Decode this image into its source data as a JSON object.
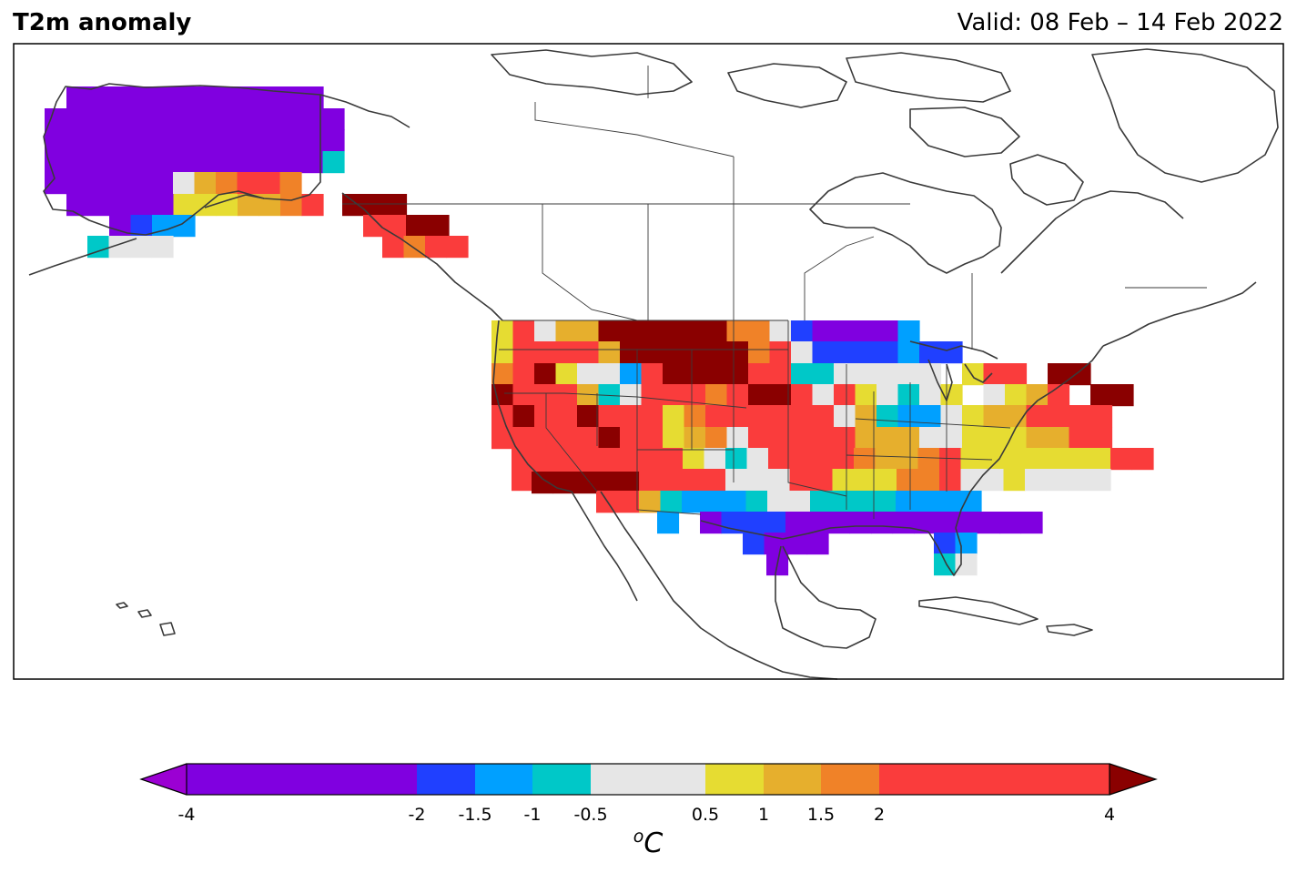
{
  "header": {
    "title": "T2m anomaly",
    "valid": "Valid: 08 Feb – 14 Feb 2022"
  },
  "colorbar": {
    "unit_base": "o",
    "unit_main": "C",
    "ticks": [
      "-4",
      "-2",
      "-1.5",
      "-1",
      "-0.5",
      "0.5",
      "1",
      "1.5",
      "2",
      "4"
    ],
    "tick_values": [
      -4,
      -2,
      -1.5,
      -1,
      -0.5,
      0.5,
      1,
      1.5,
      2,
      4
    ],
    "under_color": "#9b00d3",
    "over_color": "#8a0000",
    "bins": [
      {
        "from": -4,
        "to": -2,
        "color": "#8000e0"
      },
      {
        "from": -2,
        "to": -1.5,
        "color": "#2040ff"
      },
      {
        "from": -1.5,
        "to": -1,
        "color": "#00a0ff"
      },
      {
        "from": -1,
        "to": -0.5,
        "color": "#00c8c8"
      },
      {
        "from": -0.5,
        "to": 0.5,
        "color": "#e6e6e6"
      },
      {
        "from": 0.5,
        "to": 1,
        "color": "#e6dc32"
      },
      {
        "from": 1,
        "to": 1.5,
        "color": "#e6af2d"
      },
      {
        "from": 1.5,
        "to": 2,
        "color": "#f08228"
      },
      {
        "from": 2,
        "to": 4,
        "color": "#fa3c3c"
      }
    ]
  },
  "map": {
    "region": "North America",
    "coastline_color": "#3a3a3a",
    "cell_legend": {
      "V": "<-4",
      "P": "-4..-2",
      "B": "-2..-1.5",
      "L": "-1.5..-1",
      "C": "-1..-0.5",
      "G": "-0.5..0.5",
      "Y": "0.5..1",
      "O": "1..1.5",
      "N": "1.5..2",
      "R": "2..4",
      "D": ">4"
    },
    "colors": {
      "P": "#8000e0",
      "B": "#2040ff",
      "L": "#00a0ff",
      "C": "#00c8c8",
      "G": "#e6e6e6",
      "Y": "#e6dc32",
      "O": "#e6af2d",
      "N": "#f08228",
      "R": "#fa3c3c",
      "D": "#8a0000"
    }
  }
}
